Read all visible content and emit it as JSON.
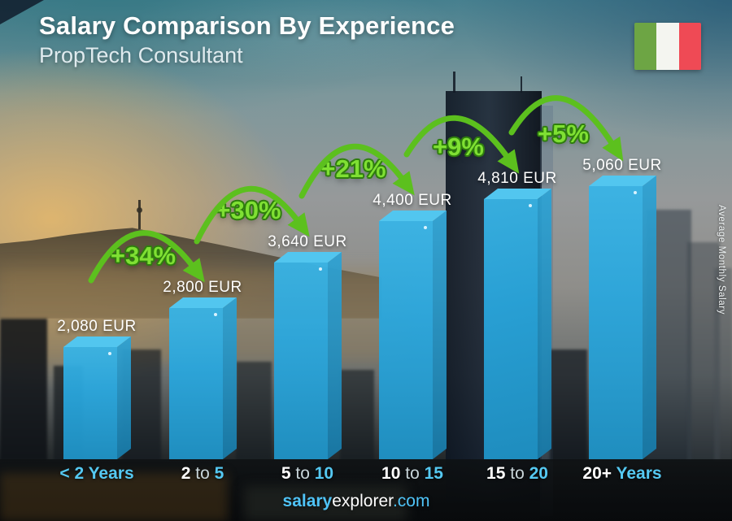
{
  "header": {
    "title": "Salary Comparison By Experience",
    "subtitle": "PropTech Consultant"
  },
  "flag": {
    "country": "Italy",
    "colors": [
      "#6DA544",
      "#F4F5F0",
      "#EF4A55"
    ]
  },
  "footer": {
    "brand_bold": "salary",
    "brand_regular": "explorer",
    "brand_suffix": ".com"
  },
  "chart_data": {
    "type": "bar",
    "title": "Salary Comparison By Experience",
    "subtitle": "PropTech Consultant",
    "ylabel": "Average Monthly Salary",
    "unit": "EUR",
    "categories": [
      "< 2 Years",
      "2 to 5",
      "5 to 10",
      "10 to 15",
      "15 to 20",
      "20+ Years"
    ],
    "values": [
      2080,
      2800,
      3640,
      4400,
      4810,
      5060
    ],
    "value_labels": [
      "2,080 EUR",
      "2,800 EUR",
      "3,640 EUR",
      "4,400 EUR",
      "4,810 EUR",
      "5,060 EUR"
    ],
    "pct_changes": [
      "+34%",
      "+30%",
      "+21%",
      "+9%",
      "+5%"
    ],
    "category_parts": [
      [
        {
          "text": "< 2 Years",
          "style": "cyan"
        }
      ],
      [
        {
          "text": "2",
          "style": "white"
        },
        {
          "text": " to ",
          "style": "mid"
        },
        {
          "text": "5",
          "style": "cyan"
        }
      ],
      [
        {
          "text": "5",
          "style": "white"
        },
        {
          "text": " to ",
          "style": "mid"
        },
        {
          "text": "10",
          "style": "cyan"
        }
      ],
      [
        {
          "text": "10",
          "style": "white"
        },
        {
          "text": " to ",
          "style": "mid"
        },
        {
          "text": "15",
          "style": "cyan"
        }
      ],
      [
        {
          "text": "15",
          "style": "white"
        },
        {
          "text": " to ",
          "style": "mid"
        },
        {
          "text": "20",
          "style": "cyan"
        }
      ],
      [
        {
          "text": "20+",
          "style": "white"
        },
        {
          "text": " Years",
          "style": "cyan"
        }
      ]
    ],
    "colors": {
      "bar_front": "#29A7DE",
      "bar_top": "#52C6EF",
      "bar_side": "#1E86B6",
      "arrow_green": "#5CC01E",
      "pct_green": "#7FE033",
      "category_cyan": "#55C9F2",
      "value_text": "#FFFFFF"
    },
    "legend": "none",
    "gridlines": false
  }
}
